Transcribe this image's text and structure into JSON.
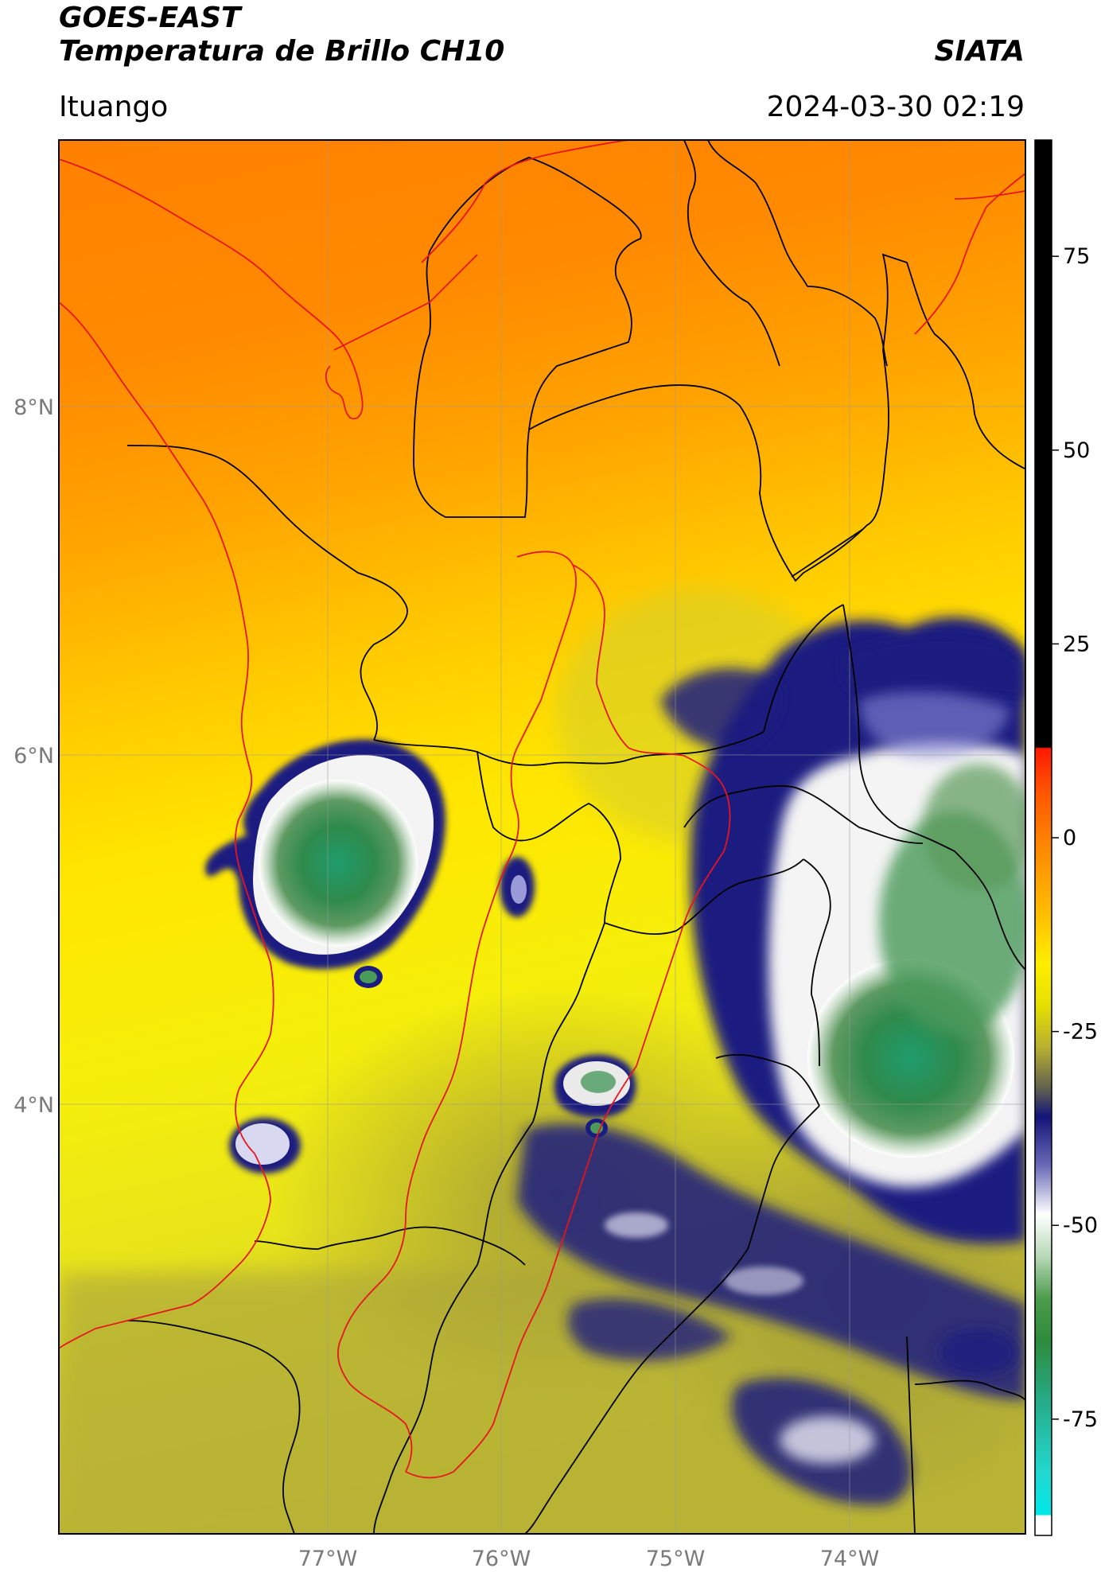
{
  "header": {
    "satellite": "GOES-EAST",
    "product": "Temperatura de Brillo CH10",
    "agency": "SIATA",
    "region": "Ituango",
    "datetime": "2024-03-30 02:19"
  },
  "map": {
    "lat_labels": [
      "8°N",
      "6°N",
      "4°N"
    ],
    "lon_labels": [
      "77°W",
      "76°W",
      "75°W",
      "74°W"
    ],
    "lat_range": [
      1.65,
      9.55
    ],
    "lon_range": [
      -78.55,
      -72.95
    ]
  },
  "colorbar": {
    "ticks": [
      75,
      50,
      25,
      0,
      -25,
      -50,
      -75
    ],
    "tick_labels": [
      "75",
      "50",
      "25",
      "0",
      "-25",
      "-50",
      "-75"
    ],
    "range": [
      -90,
      90
    ],
    "unit": "",
    "colors": {
      "warm_black": "#000000",
      "red": "#ff1a00",
      "orange": "#ff8c00",
      "yellow": "#ffee00",
      "olive": "#b8b030",
      "navy": "#14147a",
      "white": "#ffffff",
      "green": "#2e8b3c",
      "cyan": "#22d8d0"
    }
  },
  "colors": {
    "background_warm": "#ff8a00",
    "cloud_navy": "#1b1c80",
    "cloud_white": "#f4f4f4",
    "cloud_green": "#2f8a4c",
    "border_black": "#000000",
    "border_red": "#e8141e"
  }
}
